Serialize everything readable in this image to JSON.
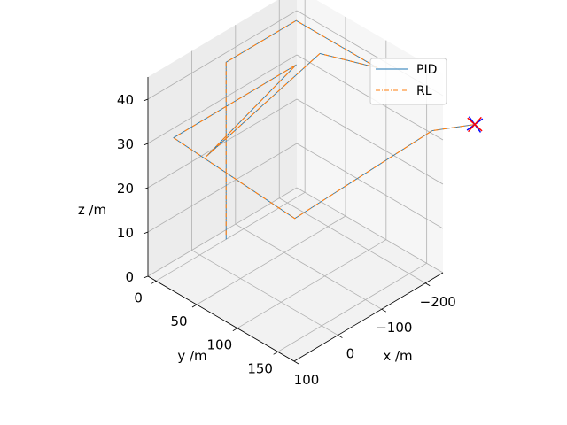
{
  "chart_data": {
    "type": "line",
    "title": "",
    "projection": "3d",
    "axes": {
      "x": {
        "label": "x /m",
        "ticks": [
          -200,
          -100,
          0,
          100
        ],
        "tick_labels": [
          "−200",
          "−100",
          "0",
          "100"
        ]
      },
      "y": {
        "label": "y /m",
        "ticks": [
          0,
          50,
          100,
          150
        ],
        "tick_labels": [
          "0",
          "50",
          "100",
          "150"
        ]
      },
      "z": {
        "label": "z /m",
        "ticks": [
          0,
          10,
          20,
          30,
          40
        ],
        "tick_labels": [
          "0",
          "10",
          "20",
          "30",
          "40"
        ]
      }
    },
    "grid": true,
    "legend": {
      "position": "top-right",
      "entries": [
        "PID",
        "RL"
      ]
    },
    "series": [
      {
        "name": "PID",
        "color": "#1f77b4",
        "style": "solid",
        "points": [
          [
            -60,
            0,
            0
          ],
          [
            -60,
            0,
            40
          ],
          [
            -220,
            0,
            40
          ],
          [
            -220,
            100,
            40
          ],
          [
            -200,
            40,
            38
          ],
          [
            60,
            40,
            30
          ],
          [
            -220,
            0,
            30
          ],
          [
            60,
            0,
            30
          ],
          [
            80,
            160,
            30
          ],
          [
            -160,
            200,
            40
          ],
          [
            -220,
            220,
            40
          ]
        ]
      },
      {
        "name": "RL",
        "color": "#ff7f0e",
        "style": "dash-dot",
        "points": [
          [
            -60,
            0,
            1
          ],
          [
            -60,
            0,
            40
          ],
          [
            -220,
            0,
            40
          ],
          [
            -220,
            100,
            40
          ],
          [
            -200,
            40,
            38
          ],
          [
            60,
            40,
            30
          ],
          [
            -220,
            0,
            30
          ],
          [
            60,
            0,
            30
          ],
          [
            80,
            160,
            30
          ],
          [
            -160,
            200,
            40
          ],
          [
            -220,
            220,
            40
          ]
        ]
      }
    ],
    "markers": [
      {
        "name": "target-PID",
        "color": "#0000ff",
        "symbol": "x",
        "point": [
          -220,
          220,
          40
        ]
      },
      {
        "name": "target-RL",
        "color": "#ff0000",
        "symbol": "x",
        "point": [
          -220,
          220,
          40
        ]
      }
    ]
  }
}
